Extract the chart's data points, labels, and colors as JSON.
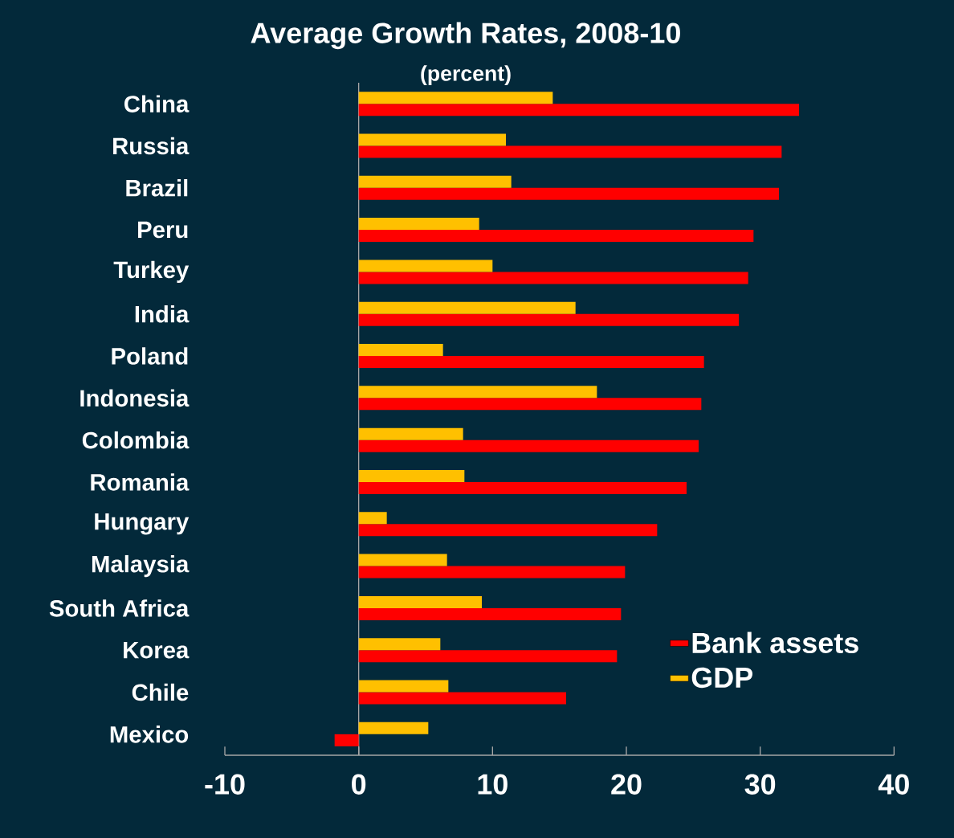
{
  "chart_data": {
    "type": "bar",
    "orientation": "horizontal",
    "title": "Average Growth Rates, 2008-10",
    "subtitle": "(percent)",
    "categories": [
      "China",
      "Russia",
      "Brazil",
      "Peru",
      "Turkey",
      "India",
      "Poland",
      "Indonesia",
      "Colombia",
      "Romania",
      "Hungary",
      "Malaysia",
      "South Africa",
      "Korea",
      "Chile",
      "Mexico"
    ],
    "series": [
      {
        "name": "Bank assets",
        "color": "#ff0000",
        "values": [
          32.9,
          31.6,
          31.4,
          29.5,
          29.1,
          28.4,
          25.8,
          25.6,
          25.4,
          24.5,
          22.3,
          19.9,
          19.6,
          19.3,
          15.5,
          -1.8
        ]
      },
      {
        "name": "GDP",
        "color": "#ffc000",
        "values": [
          14.5,
          11.0,
          11.4,
          9.0,
          10.0,
          16.2,
          6.3,
          17.8,
          7.8,
          7.9,
          2.1,
          6.6,
          9.2,
          6.1,
          6.7,
          5.2
        ]
      }
    ],
    "xlim": [
      -10,
      40
    ],
    "xticks": [
      -10,
      0,
      10,
      20,
      30,
      40
    ],
    "legend": "bottom right"
  }
}
